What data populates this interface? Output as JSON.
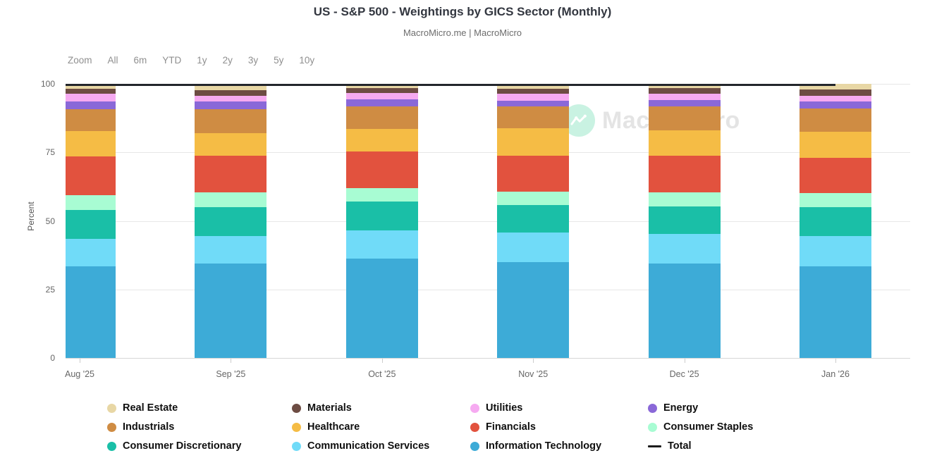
{
  "header": {
    "title": "US - S&P 500 - Weightings by GICS Sector (Monthly)",
    "subtitle": "MacroMicro.me | MacroMicro"
  },
  "toolbar": {
    "zoom_label": "Zoom",
    "ranges": [
      "All",
      "6m",
      "YTD",
      "1y",
      "2y",
      "3y",
      "5y",
      "10y"
    ]
  },
  "watermark": {
    "text": "MacroMicro",
    "icon": "macromicro-logo",
    "circle_color": "#c9f2e2"
  },
  "y_axis": {
    "label": "Percent",
    "ticks": [
      100,
      75,
      50,
      25,
      0
    ]
  },
  "legend_items": [
    {
      "label": "Real Estate",
      "marker": "circle",
      "color": "#e8d7a5"
    },
    {
      "label": "Materials",
      "marker": "circle",
      "color": "#6d4c43"
    },
    {
      "label": "Utilities",
      "marker": "circle",
      "color": "#f6aaf1"
    },
    {
      "label": "Energy",
      "marker": "circle",
      "color": "#8a68d8"
    },
    {
      "label": "Industrials",
      "marker": "circle",
      "color": "#cf8c43"
    },
    {
      "label": "Healthcare",
      "marker": "circle",
      "color": "#f5bc45"
    },
    {
      "label": "Financials",
      "marker": "circle",
      "color": "#e2523e"
    },
    {
      "label": "Consumer Staples",
      "marker": "circle",
      "color": "#a8fcd3"
    },
    {
      "label": "Consumer Discretionary",
      "marker": "circle",
      "color": "#1abfa7"
    },
    {
      "label": "Communication Services",
      "marker": "circle",
      "color": "#70dbf8"
    },
    {
      "label": "Information Technology",
      "marker": "circle",
      "color": "#3dabd7"
    },
    {
      "label": "Total",
      "marker": "line",
      "color": "#1c1c1c"
    }
  ],
  "chart_data": {
    "type": "bar",
    "stacking": "percent-stacked-column",
    "title": "US - S&P 500 - Weightings by GICS Sector (Monthly)",
    "xlabel": "",
    "ylabel": "Percent",
    "ylim": [
      0,
      100
    ],
    "grid": true,
    "legend_position": "bottom",
    "categories": [
      "Aug '25",
      "Sep '25",
      "Oct '25",
      "Nov '25",
      "Dec '25",
      "Jan '26"
    ],
    "series": [
      {
        "name": "Information Technology",
        "color": "#3dabd7",
        "values": [
          33.5,
          34.4,
          36.3,
          34.9,
          34.4,
          33.3
        ]
      },
      {
        "name": "Communication Services",
        "color": "#70dbf8",
        "values": [
          9.9,
          10.2,
          10.3,
          10.9,
          10.9,
          11.3
        ]
      },
      {
        "name": "Consumer Discretionary",
        "color": "#1abfa7",
        "values": [
          10.7,
          10.3,
          10.4,
          9.9,
          10.1,
          10.4
        ]
      },
      {
        "name": "Consumer Staples",
        "color": "#a8fcd3",
        "values": [
          5.2,
          5.4,
          4.9,
          5.0,
          4.9,
          5.1
        ]
      },
      {
        "name": "Financials",
        "color": "#e2523e",
        "values": [
          14.2,
          13.5,
          13.5,
          13.1,
          13.6,
          12.9
        ]
      },
      {
        "name": "Healthcare",
        "color": "#f5bc45",
        "values": [
          9.3,
          8.3,
          8.1,
          10.0,
          9.2,
          9.6
        ]
      },
      {
        "name": "Industrials",
        "color": "#cf8c43",
        "values": [
          7.9,
          8.7,
          8.3,
          7.9,
          8.7,
          8.3
        ]
      },
      {
        "name": "Energy",
        "color": "#8a68d8",
        "values": [
          3.0,
          2.7,
          2.6,
          2.2,
          2.3,
          2.8
        ]
      },
      {
        "name": "Utilities",
        "color": "#f6aaf1",
        "values": [
          2.6,
          2.1,
          2.4,
          2.6,
          2.3,
          2.0
        ]
      },
      {
        "name": "Materials",
        "color": "#6d4c43",
        "values": [
          1.9,
          2.0,
          1.7,
          1.7,
          2.0,
          2.3
        ]
      },
      {
        "name": "Real Estate",
        "color": "#e8d7a5",
        "values": [
          1.8,
          2.4,
          1.5,
          1.8,
          1.6,
          2.0
        ]
      }
    ],
    "total_line": {
      "name": "Total",
      "color": "#23262b",
      "values": [
        100,
        100,
        100,
        100,
        100,
        100
      ]
    }
  }
}
